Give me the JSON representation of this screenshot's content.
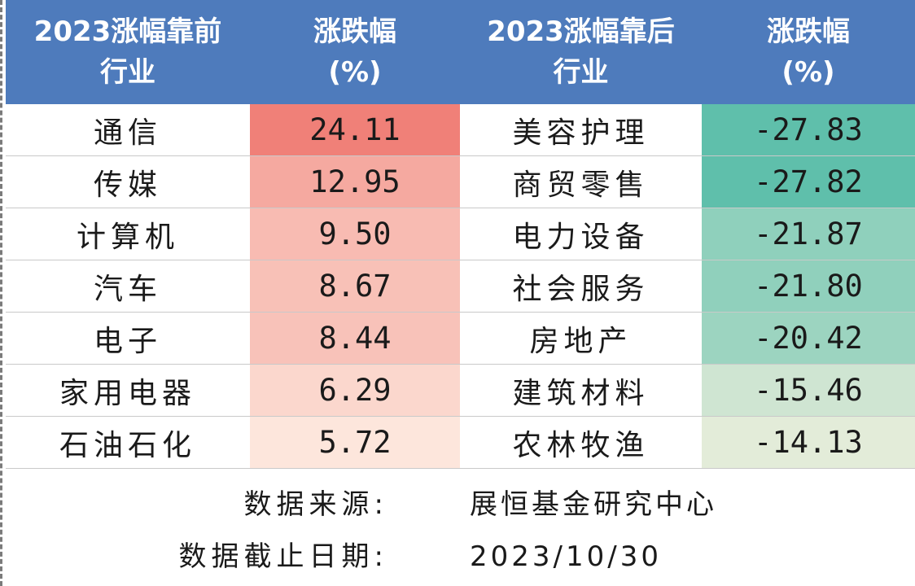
{
  "headers": {
    "top_industry": [
      "2023涨幅靠前",
      "行业"
    ],
    "top_change": [
      "涨跌幅",
      "(%)"
    ],
    "bottom_industry": [
      "2023涨幅靠后",
      "行业"
    ],
    "bottom_change": [
      "涨跌幅",
      "(%)"
    ]
  },
  "rows": [
    {
      "top_name": "通信",
      "top_value": "24.11",
      "bottom_name": "美容护理",
      "bottom_value": "-27.83"
    },
    {
      "top_name": "传媒",
      "top_value": "12.95",
      "bottom_name": "商贸零售",
      "bottom_value": "-27.82"
    },
    {
      "top_name": "计算机",
      "top_value": "9.50",
      "bottom_name": "电力设备",
      "bottom_value": "-21.87"
    },
    {
      "top_name": "汽车",
      "top_value": "8.67",
      "bottom_name": "社会服务",
      "bottom_value": "-21.80"
    },
    {
      "top_name": "电子",
      "top_value": "8.44",
      "bottom_name": "房地产",
      "bottom_value": "-20.42"
    },
    {
      "top_name": "家用电器",
      "top_value": "6.29",
      "bottom_name": "建筑材料",
      "bottom_value": "-15.46"
    },
    {
      "top_name": "石油石化",
      "top_value": "5.72",
      "bottom_name": "农林牧渔",
      "bottom_value": "-14.13"
    }
  ],
  "footer": {
    "source_label": "数据来源:",
    "source_value": "展恒基金研究中心",
    "cutoff_label": "数据截止日期:",
    "cutoff_value": "2023/10/30"
  },
  "colors": {
    "header_bg": "#4e7bbc",
    "positive_max": "#f08078",
    "positive_min": "#fde6dc",
    "negative_max": "#5fbfab",
    "negative_min": "#e3ecd9"
  }
}
